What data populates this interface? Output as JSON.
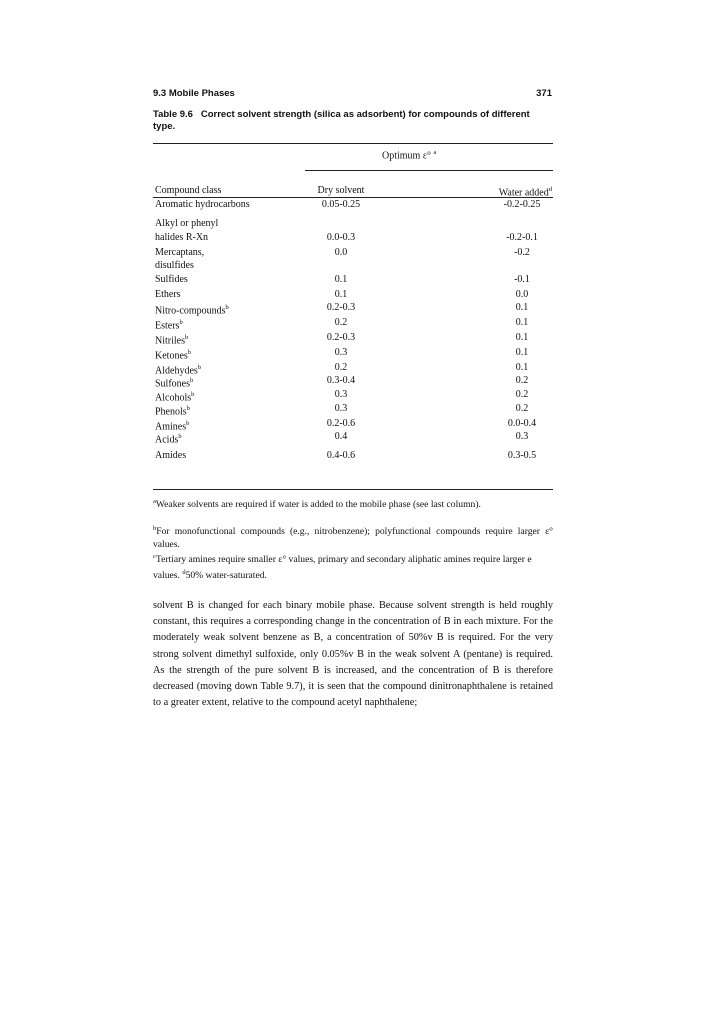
{
  "header": {
    "section": "9.3  Mobile Phases",
    "page_number": "371"
  },
  "caption": {
    "label": "Table 9.6",
    "text": "Correct solvent strength (silica as adsorbent) for compounds of different type."
  },
  "table": {
    "group_header": "Optimum ε°",
    "group_header_sup": "a",
    "columns": [
      "Compound class",
      "Dry solvent",
      "Water added"
    ],
    "water_sup": "d",
    "rows": [
      {
        "c": "Aromatic hydrocarbons",
        "sup": "",
        "dry": "0.05-0.25",
        "water": "-0.2-0.25"
      },
      {
        "c": "Alkyl or phenyl",
        "sup": "",
        "dry": "",
        "water": ""
      },
      {
        "c": "halides R-Xn",
        "sup": "",
        "dry": "0.0-0.3",
        "water": "-0.2-0.1"
      },
      {
        "c": "Mercaptans,",
        "sup": "",
        "dry": "0.0",
        "water": "-0.2"
      },
      {
        "c": "disulfides",
        "sup": "",
        "dry": "",
        "water": ""
      },
      {
        "c": "Sulfides",
        "sup": "",
        "dry": "0.1",
        "water": "-0.1"
      },
      {
        "c": "Ethers",
        "sup": "",
        "dry": "0.1",
        "water": "0.0"
      },
      {
        "c": "Nitro-compounds",
        "sup": "b",
        "dry": "0.2-0.3",
        "water": "0.1"
      },
      {
        "c": "Esters",
        "sup": "b",
        "dry": "0.2",
        "water": "0.1"
      },
      {
        "c": "Nitriles",
        "sup": "b",
        "dry": "0.2-0.3",
        "water": "0.1"
      },
      {
        "c": "Ketones",
        "sup": "b",
        "dry": "0.3",
        "water": "0.1"
      },
      {
        "c": "Aldehydes",
        "sup": "b",
        "dry": "0.2",
        "water": "0.1"
      },
      {
        "c": "Sulfones",
        "sup": "b",
        "dry": "0.3-0.4",
        "water": "0.2"
      },
      {
        "c": "Alcohols",
        "sup": "b",
        "dry": "0.3",
        "water": "0.2"
      },
      {
        "c": "Phenols",
        "sup": "b",
        "dry": "0.3",
        "water": "0.2"
      },
      {
        "c": "Amines",
        "sup": "b",
        "dry": "0.2-0.6",
        "water": "0.0-0.4"
      },
      {
        "c": "Acids",
        "sup": "b",
        "dry": "0.4",
        "water": "0.3"
      },
      {
        "c": "Amides",
        "sup": "",
        "dry": "0.4-0.6",
        "water": "0.3-0.5"
      }
    ]
  },
  "footnotes": {
    "a": "Weaker solvents are required if water is added to the mobile phase (see last column).",
    "b": "For monofunctional compounds (e.g., nitrobenzene); polyfunctional compounds require larger ε° values.",
    "c": "Tertiary amines require smaller ε° values, primary and secondary aliphatic amines require larger e values.",
    "d": "50% water-saturated."
  },
  "body_text": "solvent B is changed for each binary mobile phase. Because solvent strength is held roughly constant, this requires a corresponding change in the concentration of B in each mixture. For the moderately weak solvent benzene as B, a concentration of 50%v B is required. For the very strong solvent dimethyl sulfoxide, only 0.05%v B in the weak solvent A (pentane) is required. As the strength of the pure solvent B is increased, and the concentration of B is therefore decreased (moving down Table 9.7), it is seen that the compound dinitronaphthalene is retained to a greater extent, relative to the compound acetyl naphthalene;"
}
